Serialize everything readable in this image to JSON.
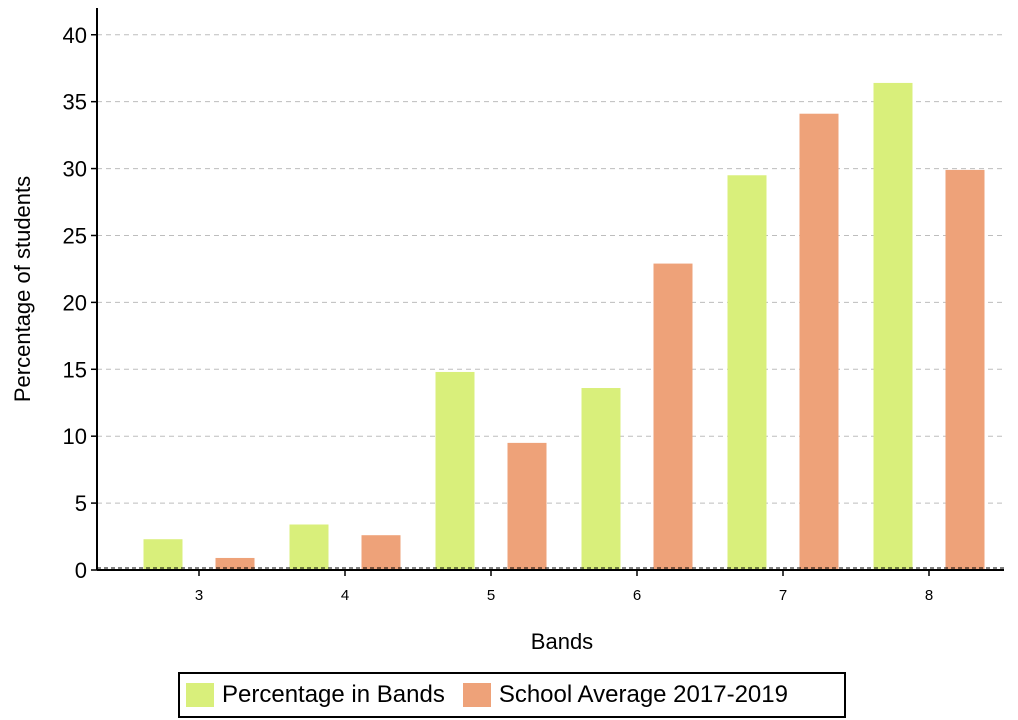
{
  "chart_data": {
    "type": "bar",
    "xlabel": "Bands",
    "ylabel": "Percentage of students",
    "categories": [
      "3",
      "4",
      "5",
      "6",
      "7",
      "8"
    ],
    "ylim": [
      0,
      42
    ],
    "yticks": [
      0,
      5,
      10,
      15,
      20,
      25,
      30,
      35,
      40
    ],
    "grid": true,
    "legend_position": "bottom",
    "series": [
      {
        "name": "Percentage in Bands",
        "color": "#d9ef7b",
        "values": [
          2.3,
          3.4,
          14.8,
          13.6,
          29.5,
          36.4
        ]
      },
      {
        "name": "School Average 2017-2019",
        "color": "#eea279",
        "values": [
          0.9,
          2.6,
          9.5,
          22.9,
          34.1,
          29.9
        ]
      }
    ]
  }
}
